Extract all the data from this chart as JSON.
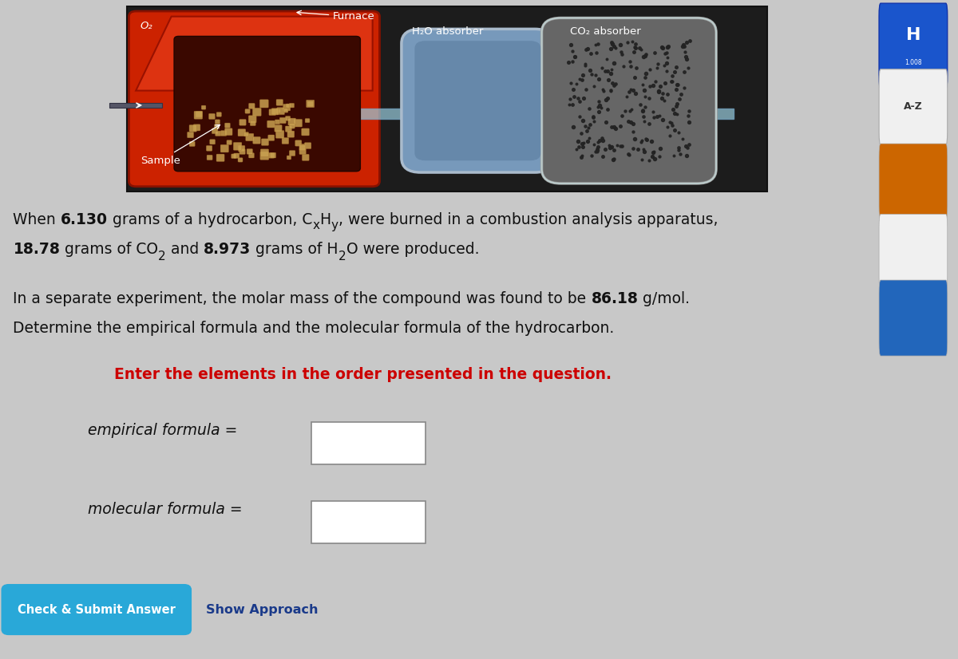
{
  "bg_color": "#c8c8c8",
  "content_bg": "#f0f0f0",
  "text_color": "#111111",
  "red_text_color": "#cc0000",
  "blue_button_color": "#29a8d8",
  "blue_link_color": "#1a3a8a",
  "btn_submit": "Check & Submit Answer",
  "btn_show": "Show Approach",
  "instruction": "Enter the elements in the order presented in the question.",
  "furnace_label": "Furnace",
  "h2o_label": "H₂O absorber",
  "co2_label": "CO₂ absorber",
  "sample_label": "Sample",
  "o2_label": "O₂",
  "sidebar_h_color": "#1a55cc",
  "sidebar_az_color": "#f0f0f0"
}
